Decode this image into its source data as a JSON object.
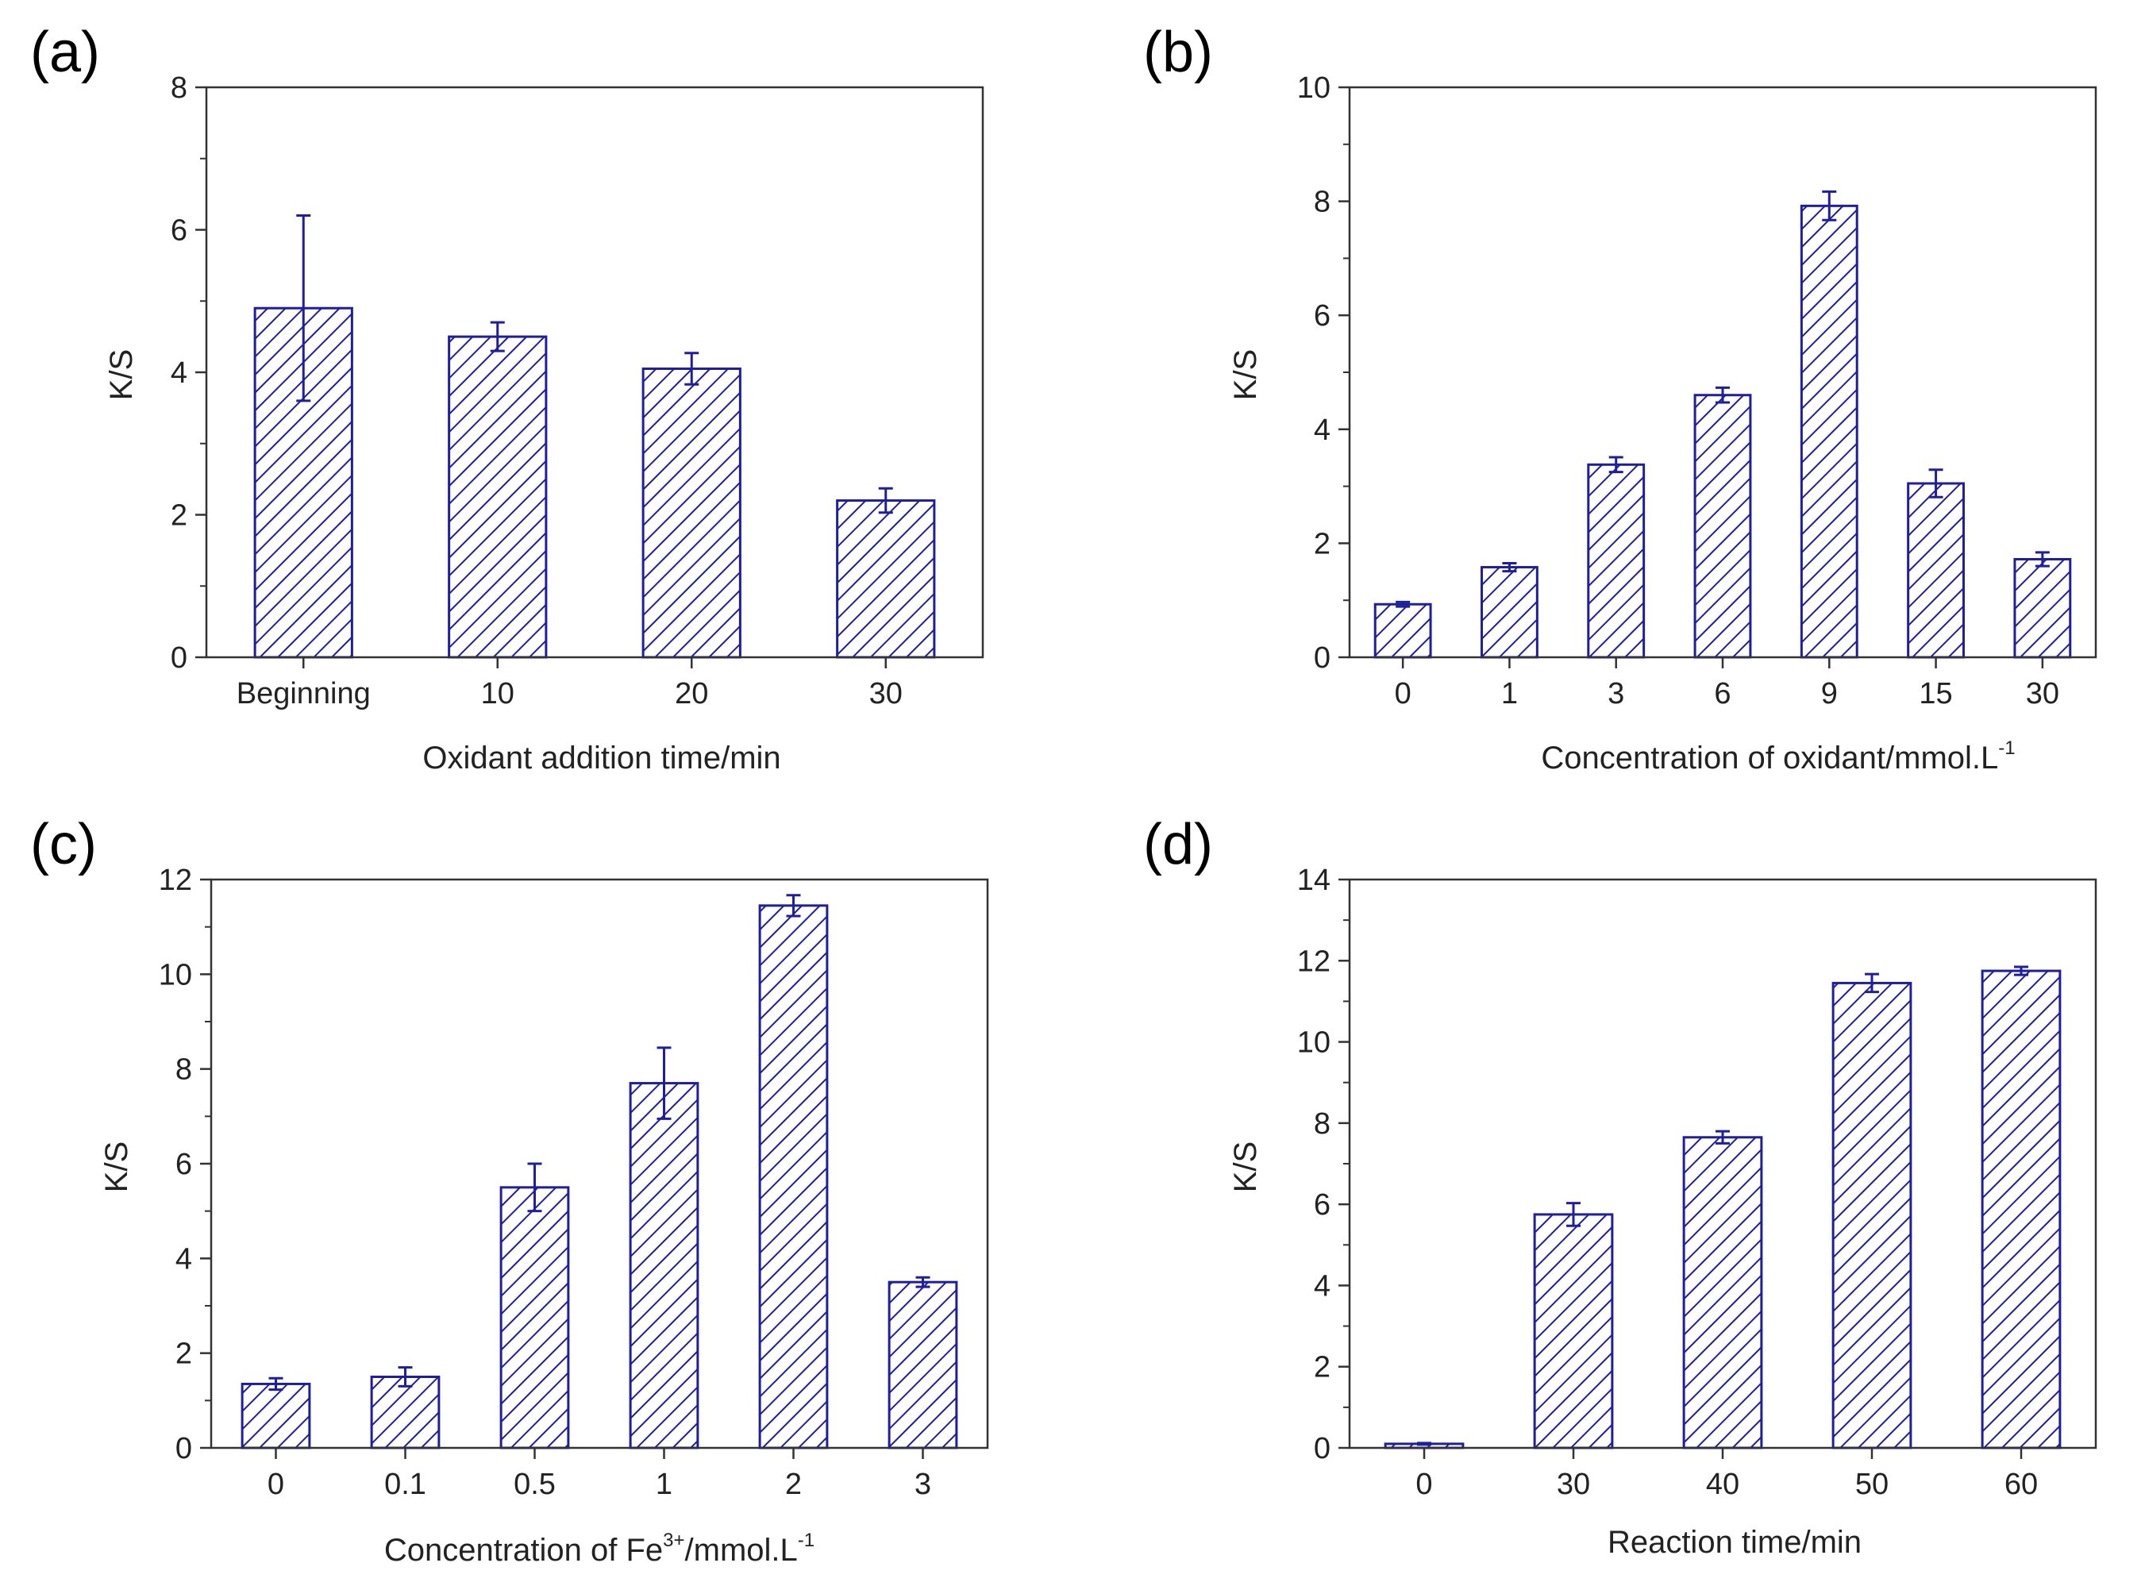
{
  "colors": {
    "bar_outline": "#1f1f9e",
    "hatch": "#1f1f9e",
    "error_bar": "#1f1f9e",
    "axis": "#333333",
    "text": "#222222"
  },
  "chart_data": [
    {
      "panel": "(a)",
      "type": "bar",
      "title": "",
      "xlabel": "Oxidant addition time/min",
      "ylabel": "K/S",
      "categories": [
        "Beginning",
        "10",
        "20",
        "30"
      ],
      "values": [
        4.9,
        4.5,
        4.05,
        2.2
      ],
      "errors": [
        1.3,
        0.2,
        0.22,
        0.17
      ],
      "ylim": [
        0,
        8
      ],
      "yticks": [
        "0",
        "2",
        "4",
        "6",
        "8"
      ]
    },
    {
      "panel": "(b)",
      "type": "bar",
      "title": "",
      "xlabel_main": "Concentration of oxidant/mmol.L",
      "xlabel_sup": "-1",
      "ylabel": "K/S",
      "categories": [
        "0",
        "1",
        "3",
        "6",
        "9",
        "15",
        "30"
      ],
      "values": [
        0.93,
        1.58,
        3.38,
        4.6,
        7.92,
        3.05,
        1.72
      ],
      "errors": [
        0.04,
        0.07,
        0.13,
        0.13,
        0.25,
        0.24,
        0.12
      ],
      "ylim": [
        0,
        10
      ],
      "yticks": [
        "0",
        "2",
        "4",
        "6",
        "8",
        "10"
      ]
    },
    {
      "panel": "(c)",
      "type": "bar",
      "title": "",
      "xlabel_main": "Concentration of Fe",
      "xlabel_sup": "3+",
      "xlabel_rest": "/mmol.L",
      "xlabel_sup2": "-1",
      "ylabel": "K/S",
      "categories": [
        "0",
        "0.1",
        "0.5",
        "1",
        "2",
        "3"
      ],
      "values": [
        1.35,
        1.5,
        5.5,
        7.7,
        11.45,
        3.5
      ],
      "errors": [
        0.12,
        0.2,
        0.5,
        0.75,
        0.22,
        0.1
      ],
      "ylim": [
        0,
        12
      ],
      "yticks": [
        "0",
        "2",
        "4",
        "6",
        "8",
        "10",
        "12"
      ]
    },
    {
      "panel": "(d)",
      "type": "bar",
      "title": "",
      "xlabel": "Reaction time/min",
      "ylabel": "K/S",
      "categories": [
        "0",
        "30",
        "40",
        "50",
        "60"
      ],
      "values": [
        0.1,
        5.75,
        7.65,
        11.45,
        11.75
      ],
      "errors": [
        0.02,
        0.28,
        0.15,
        0.22,
        0.1
      ],
      "ylim": [
        0,
        14
      ],
      "yticks": [
        "0",
        "2",
        "4",
        "6",
        "8",
        "10",
        "12",
        "14"
      ]
    }
  ]
}
